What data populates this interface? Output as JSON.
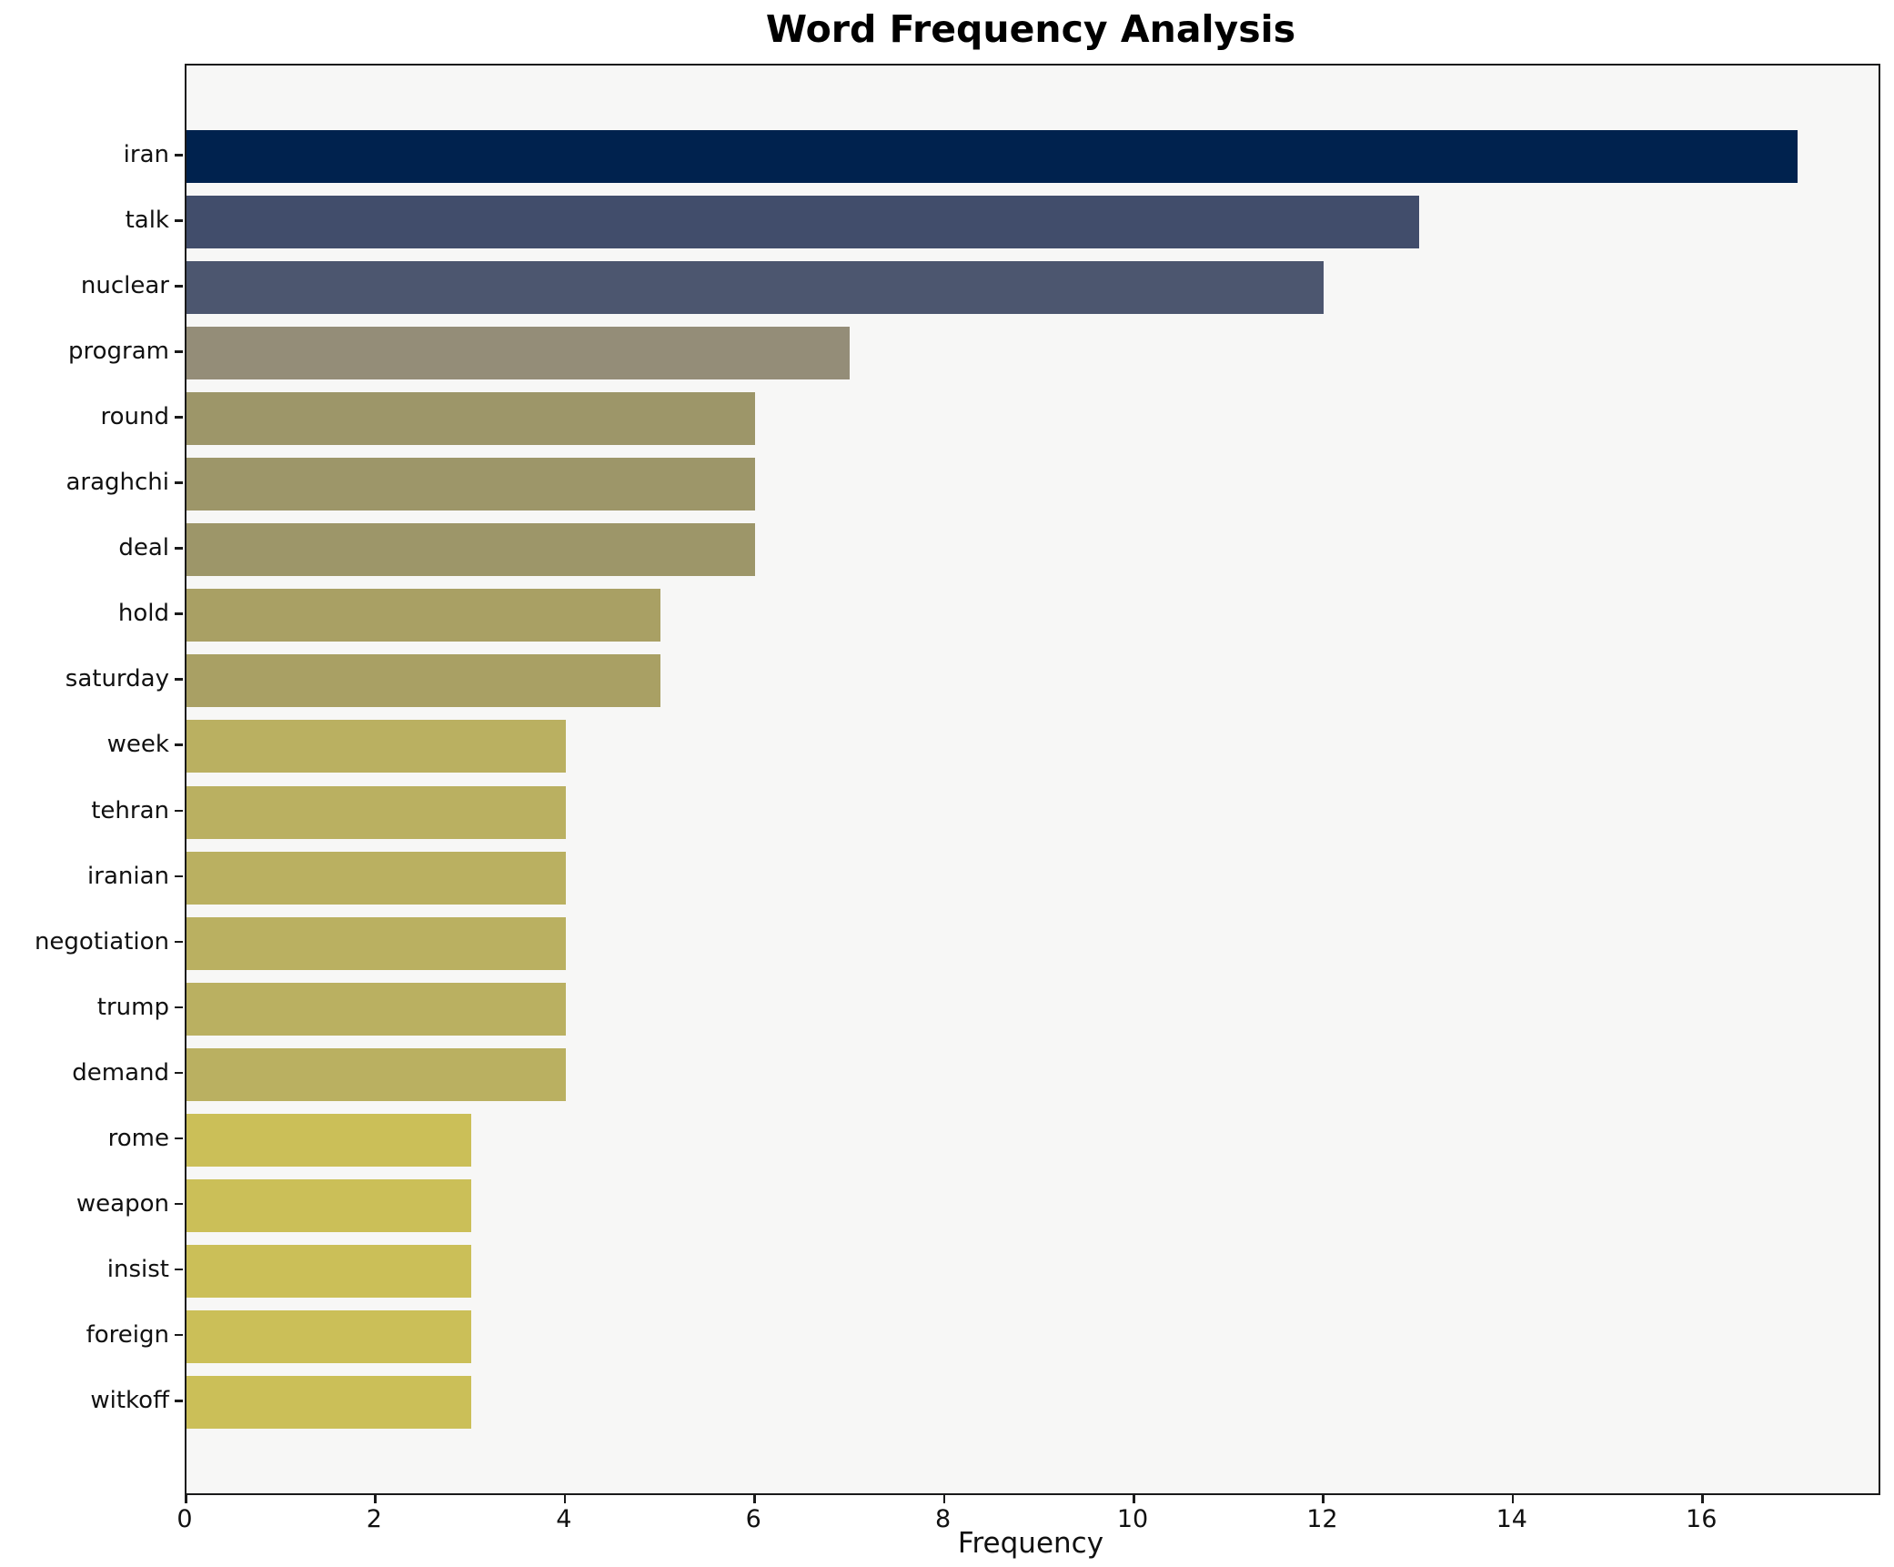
{
  "chart_data": {
    "type": "bar",
    "orientation": "horizontal",
    "title": "Word Frequency Analysis",
    "xlabel": "Frequency",
    "ylabel": "",
    "categories": [
      "iran",
      "talk",
      "nuclear",
      "program",
      "round",
      "araghchi",
      "deal",
      "hold",
      "saturday",
      "week",
      "tehran",
      "iranian",
      "negotiation",
      "trump",
      "demand",
      "rome",
      "weapon",
      "insist",
      "foreign",
      "witkoff"
    ],
    "values": [
      17,
      13,
      12,
      7,
      6,
      6,
      6,
      5,
      5,
      4,
      4,
      4,
      4,
      4,
      4,
      3,
      3,
      3,
      3,
      3
    ],
    "bar_colors": [
      "#00224e",
      "#414d6b",
      "#4c566f",
      "#948d78",
      "#9d9669",
      "#9d9669",
      "#9d9669",
      "#a9a064",
      "#a9a064",
      "#bab061",
      "#bab061",
      "#bab061",
      "#bab061",
      "#bab061",
      "#bab061",
      "#cbbf58",
      "#cbbf58",
      "#cbbf58",
      "#cbbf58",
      "#cbbf58"
    ],
    "xlim": [
      0,
      17.85
    ],
    "x_ticks": [
      0,
      2,
      4,
      6,
      8,
      10,
      12,
      14,
      16
    ],
    "grid": false,
    "legend": "none",
    "colormap": "cividis (dark = high frequency)",
    "plot_background": "#f7f7f6",
    "figure_background": "#ffffff",
    "spine_color": "#1a1a1a"
  }
}
